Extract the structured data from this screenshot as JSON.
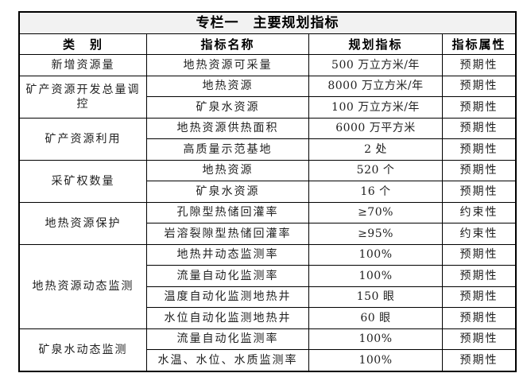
{
  "title": "专栏一　主要规划指标",
  "headers": [
    "类　别",
    "指标名称",
    "规划指标",
    "指标属性"
  ],
  "groups": [
    {
      "category": "新增资源量",
      "rows": [
        {
          "name": "地热资源可采量",
          "target": "500 万立方米/年",
          "attr": "预期性"
        }
      ]
    },
    {
      "category": "矿产资源开发总量调控",
      "rows": [
        {
          "name": "地热资源",
          "target": "8000 万立方米/年",
          "attr": "预期性"
        },
        {
          "name": "矿泉水资源",
          "target": "100 万立方米/年",
          "attr": "预期性"
        }
      ]
    },
    {
      "category": "矿产资源利用",
      "rows": [
        {
          "name": "地热资源供热面积",
          "target": "6000 万平方米",
          "attr": "预期性"
        },
        {
          "name": "高质量示范基地",
          "target": "2 处",
          "attr": "预期性"
        }
      ]
    },
    {
      "category": "采矿权数量",
      "rows": [
        {
          "name": "地热资源",
          "target": "520 个",
          "attr": "预期性"
        },
        {
          "name": "矿泉水资源",
          "target": "16 个",
          "attr": "预期性"
        }
      ]
    },
    {
      "category": "地热资源保护",
      "rows": [
        {
          "name": "孔隙型热储回灌率",
          "target": "≥70%",
          "attr": "约束性"
        },
        {
          "name": "岩溶裂隙型热储回灌率",
          "target": "≥95%",
          "attr": "约束性"
        }
      ]
    },
    {
      "category": "地热资源动态监测",
      "rows": [
        {
          "name": "地热井动态监测率",
          "target": "100%",
          "attr": "预期性"
        },
        {
          "name": "流量自动化监测率",
          "target": "100%",
          "attr": "预期性"
        },
        {
          "name": "温度自动化监测地热井",
          "target": "150 眼",
          "attr": "预期性"
        },
        {
          "name": "水位自动化监测地热井",
          "target": "60 眼",
          "attr": "预期性"
        }
      ]
    },
    {
      "category": "矿泉水动态监测",
      "rows": [
        {
          "name": "流量自动化监测率",
          "target": "100%",
          "attr": "预期性"
        },
        {
          "name": "水温、水位、水质监测率",
          "target": "100%",
          "attr": "预期性"
        }
      ]
    }
  ]
}
